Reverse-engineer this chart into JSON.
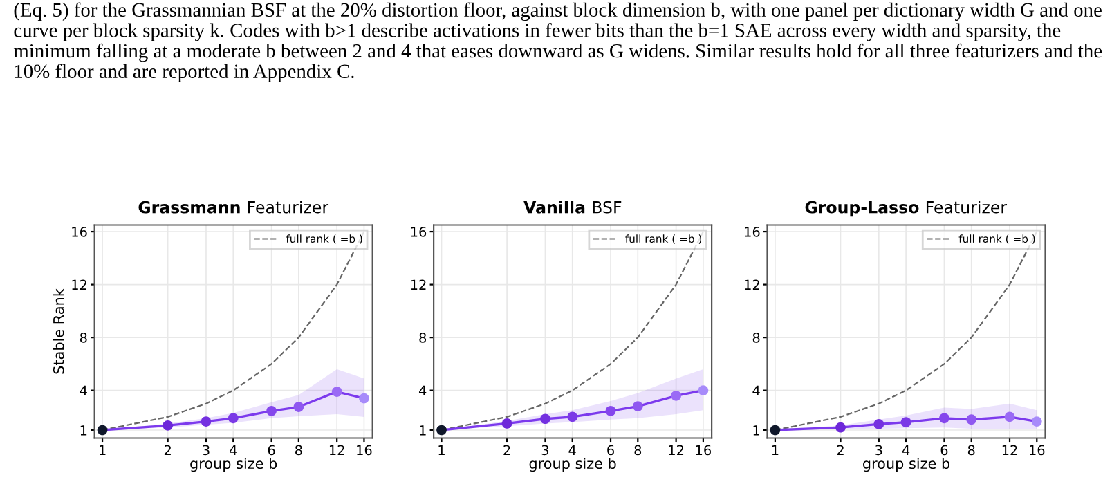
{
  "chart_data": [
    {
      "type": "line",
      "title": "Grassmann Featurizer",
      "xlabel": "group size b",
      "ylabel": "Stable Rank",
      "log": "x",
      "xlim": [
        0.92,
        17.5
      ],
      "ylim": [
        0.4,
        16.5
      ],
      "xticks": [
        1,
        2,
        3,
        4,
        6,
        8,
        12,
        16
      ],
      "yticks": [
        1,
        4,
        8,
        12,
        16
      ],
      "grid": true,
      "legend": "top right",
      "annotations": [
        "(Eq. 5) for the Grassmannian BSF at the 20% distortion floor, against block dimension b, with one panel per dictionary width G and one curve per block sparsity k. Codes with b>1 describe activations in fewer bits than the b=1 SAE across every width and sparsity, the minimum falling at a moderate b between 2 and 4 that eases downward as G widens. Similar results hold for all three featurizers and the 10% floor and are reported in Appendix C."
      ],
      "x": [
        1,
        2,
        3,
        4,
        6,
        8,
        12,
        16
      ],
      "series": [
        {
          "name": "full rank ( =b )",
          "color": "#666666",
          "line_style": "dashed",
          "marker": "none",
          "values": [
            1,
            2,
            3,
            4,
            6,
            8,
            12,
            16
          ]
        },
        {
          "color": "#7c3aed",
          "marker": "circle",
          "line_style": "solid",
          "colors": [
            "#0f172a",
            "#6d28d9",
            "#7431e0",
            "#7b3ae6",
            "#8547ec",
            "#8f58f0",
            "#9a6af5",
            "#a78bfa"
          ],
          "values": [
            1,
            1.35,
            1.65,
            1.9,
            2.45,
            2.75,
            3.9,
            3.4
          ],
          "lower": [
            1,
            1.2,
            1.4,
            1.55,
            1.9,
            2.05,
            2.2,
            2.0
          ],
          "upper": [
            1,
            1.5,
            1.9,
            2.3,
            3.1,
            3.65,
            5.6,
            4.9
          ]
        }
      ]
    },
    {
      "type": "line",
      "title": "Vanilla BSF",
      "xlabel": "group size b",
      "log": "x",
      "xlim": [
        0.92,
        17.5
      ],
      "ylim": [
        0.4,
        16.5
      ],
      "xticks": [
        1,
        2,
        3,
        4,
        6,
        8,
        12,
        16
      ],
      "yticks": [
        1,
        4,
        8,
        12,
        16
      ],
      "grid": true,
      "legend": "top right",
      "x": [
        1,
        2,
        3,
        4,
        6,
        8,
        12,
        16
      ],
      "series": [
        {
          "name": "full rank ( =b )",
          "color": "#666666",
          "line_style": "dashed",
          "marker": "none",
          "values": [
            1,
            2,
            3,
            4,
            6,
            8,
            12,
            16
          ]
        },
        {
          "color": "#7c3aed",
          "marker": "circle",
          "line_style": "solid",
          "colors": [
            "#0f172a",
            "#6d28d9",
            "#7431e0",
            "#7b3ae6",
            "#8547ec",
            "#8f58f0",
            "#9a6af5",
            "#a78bfa"
          ],
          "values": [
            1,
            1.5,
            1.85,
            2.0,
            2.45,
            2.8,
            3.6,
            4.0
          ],
          "lower": [
            1,
            1.3,
            1.5,
            1.6,
            1.8,
            1.9,
            2.2,
            2.5
          ],
          "upper": [
            1,
            1.7,
            2.2,
            2.5,
            3.2,
            3.8,
            4.9,
            5.6
          ]
        }
      ]
    },
    {
      "type": "line",
      "title": "Group-Lasso Featurizer",
      "xlabel": "group size b",
      "log": "x",
      "xlim": [
        0.92,
        17.5
      ],
      "ylim": [
        0.4,
        16.5
      ],
      "xticks": [
        1,
        2,
        3,
        4,
        6,
        8,
        12,
        16
      ],
      "yticks": [
        1,
        4,
        8,
        12,
        16
      ],
      "grid": true,
      "legend": "top right",
      "x": [
        1,
        2,
        3,
        4,
        6,
        8,
        12,
        16
      ],
      "series": [
        {
          "name": "full rank ( =b )",
          "color": "#666666",
          "line_style": "dashed",
          "marker": "none",
          "values": [
            1,
            2,
            3,
            4,
            6,
            8,
            12,
            16
          ]
        },
        {
          "color": "#7c3aed",
          "marker": "circle",
          "line_style": "solid",
          "colors": [
            "#0f172a",
            "#6d28d9",
            "#7431e0",
            "#7b3ae6",
            "#8547ec",
            "#8f58f0",
            "#9a6af5",
            "#a78bfa"
          ],
          "values": [
            1,
            1.2,
            1.45,
            1.6,
            1.9,
            1.8,
            2.0,
            1.65
          ],
          "lower": [
            1,
            1.05,
            1.1,
            1.15,
            1.2,
            1.1,
            1.1,
            1.05
          ],
          "upper": [
            1,
            1.35,
            1.8,
            2.1,
            2.7,
            2.6,
            3.0,
            2.5
          ]
        }
      ]
    }
  ]
}
